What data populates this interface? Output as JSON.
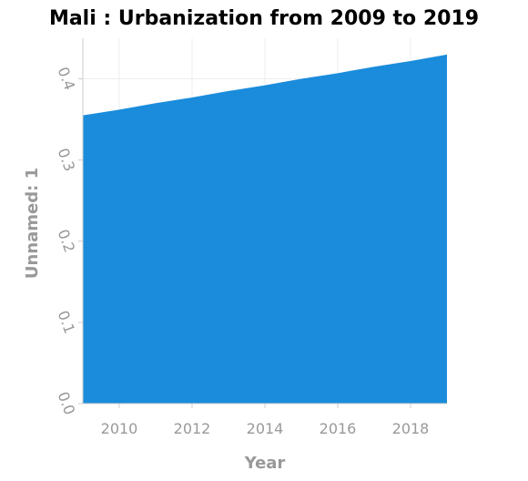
{
  "chart_data": {
    "type": "area",
    "title": "Mali : Urbanization from 2009 to 2019",
    "xlabel": "Year",
    "ylabel": "Unnamed: 1",
    "x": [
      2009,
      2010,
      2011,
      2012,
      2013,
      2014,
      2015,
      2016,
      2017,
      2018,
      2019
    ],
    "series": [
      {
        "values": [
          0.355,
          0.362,
          0.37,
          0.377,
          0.385,
          0.392,
          0.4,
          0.407,
          0.415,
          0.422,
          0.43
        ]
      }
    ],
    "xlim": [
      2009,
      2019
    ],
    "ylim": [
      0,
      0.45
    ],
    "x_ticks": [
      2010,
      2012,
      2014,
      2016,
      2018
    ],
    "y_ticks": [
      "0.0",
      "0.1",
      "0.2",
      "0.3",
      "0.4"
    ],
    "grid": true,
    "color": "#1a8cdb"
  }
}
